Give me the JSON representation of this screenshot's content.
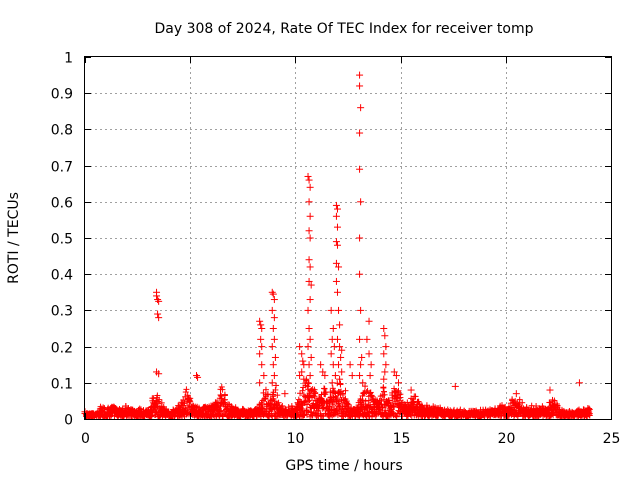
{
  "chart_data": {
    "type": "scatter",
    "title": "Day 308 of 2024, Rate Of TEC Index for receiver tomp",
    "xlabel": "GPS time / hours",
    "ylabel": "ROTI / TECUs",
    "xlim": [
      0,
      25
    ],
    "ylim": [
      0,
      1
    ],
    "x_ticks": [
      "0",
      "5",
      "10",
      "15",
      "20",
      "25"
    ],
    "y_ticks": [
      "0",
      "0.1",
      "0.2",
      "0.3",
      "0.4",
      "0.5",
      "0.6",
      "0.7",
      "0.8",
      "0.9",
      "1"
    ],
    "grid": true,
    "marker": "plus",
    "color": "#ff0000",
    "series": [
      {
        "points": [
          [
            0.0,
            0.02
          ],
          [
            0.0,
            0.015
          ],
          [
            3.4,
            0.35
          ],
          [
            3.4,
            0.34
          ],
          [
            3.45,
            0.33
          ],
          [
            3.5,
            0.325
          ],
          [
            3.45,
            0.29
          ],
          [
            3.5,
            0.28
          ],
          [
            3.4,
            0.13
          ],
          [
            3.5,
            0.125
          ],
          [
            5.3,
            0.12
          ],
          [
            5.35,
            0.115
          ],
          [
            8.3,
            0.27
          ],
          [
            8.35,
            0.26
          ],
          [
            8.4,
            0.25
          ],
          [
            8.35,
            0.22
          ],
          [
            8.4,
            0.2
          ],
          [
            8.3,
            0.18
          ],
          [
            8.4,
            0.15
          ],
          [
            8.5,
            0.12
          ],
          [
            8.3,
            0.1
          ],
          [
            8.9,
            0.35
          ],
          [
            8.95,
            0.345
          ],
          [
            9.0,
            0.33
          ],
          [
            8.9,
            0.3
          ],
          [
            9.0,
            0.28
          ],
          [
            8.95,
            0.25
          ],
          [
            9.0,
            0.22
          ],
          [
            8.9,
            0.2
          ],
          [
            9.05,
            0.17
          ],
          [
            8.95,
            0.15
          ],
          [
            9.0,
            0.12
          ],
          [
            8.9,
            0.1
          ],
          [
            9.5,
            0.07
          ],
          [
            10.2,
            0.2
          ],
          [
            10.3,
            0.18
          ],
          [
            10.35,
            0.16
          ],
          [
            10.4,
            0.15
          ],
          [
            10.3,
            0.13
          ],
          [
            10.2,
            0.12
          ],
          [
            10.4,
            0.11
          ],
          [
            10.6,
            0.67
          ],
          [
            10.65,
            0.66
          ],
          [
            10.7,
            0.64
          ],
          [
            10.65,
            0.6
          ],
          [
            10.7,
            0.56
          ],
          [
            10.65,
            0.52
          ],
          [
            10.7,
            0.5
          ],
          [
            10.65,
            0.44
          ],
          [
            10.7,
            0.42
          ],
          [
            10.65,
            0.38
          ],
          [
            10.75,
            0.37
          ],
          [
            10.7,
            0.33
          ],
          [
            10.6,
            0.3
          ],
          [
            10.65,
            0.25
          ],
          [
            10.7,
            0.22
          ],
          [
            10.6,
            0.2
          ],
          [
            10.75,
            0.17
          ],
          [
            10.65,
            0.15
          ],
          [
            10.7,
            0.12
          ],
          [
            10.6,
            0.1
          ],
          [
            11.2,
            0.15
          ],
          [
            11.3,
            0.13
          ],
          [
            11.4,
            0.12
          ],
          [
            11.7,
            0.3
          ],
          [
            11.8,
            0.25
          ],
          [
            11.75,
            0.22
          ],
          [
            11.85,
            0.2
          ],
          [
            11.7,
            0.18
          ],
          [
            11.8,
            0.15
          ],
          [
            11.9,
            0.12
          ],
          [
            11.75,
            0.1
          ],
          [
            11.95,
            0.59
          ],
          [
            12.0,
            0.58
          ],
          [
            11.95,
            0.56
          ],
          [
            12.0,
            0.53
          ],
          [
            11.95,
            0.49
          ],
          [
            12.0,
            0.48
          ],
          [
            11.95,
            0.43
          ],
          [
            12.05,
            0.42
          ],
          [
            11.95,
            0.38
          ],
          [
            12.0,
            0.35
          ],
          [
            12.05,
            0.3
          ],
          [
            12.1,
            0.26
          ],
          [
            12.0,
            0.22
          ],
          [
            12.1,
            0.2
          ],
          [
            12.2,
            0.19
          ],
          [
            12.15,
            0.17
          ],
          [
            12.05,
            0.15
          ],
          [
            12.2,
            0.13
          ],
          [
            12.1,
            0.11
          ],
          [
            12.6,
            0.15
          ],
          [
            12.7,
            0.12
          ],
          [
            13.05,
            0.95
          ],
          [
            13.05,
            0.92
          ],
          [
            13.1,
            0.86
          ],
          [
            13.05,
            0.79
          ],
          [
            13.05,
            0.69
          ],
          [
            13.1,
            0.6
          ],
          [
            13.05,
            0.5
          ],
          [
            13.05,
            0.4
          ],
          [
            13.1,
            0.3
          ],
          [
            13.05,
            0.22
          ],
          [
            13.15,
            0.17
          ],
          [
            13.1,
            0.15
          ],
          [
            13.05,
            0.12
          ],
          [
            13.2,
            0.1
          ],
          [
            13.5,
            0.27
          ],
          [
            13.4,
            0.22
          ],
          [
            13.5,
            0.18
          ],
          [
            13.6,
            0.15
          ],
          [
            13.55,
            0.12
          ],
          [
            14.2,
            0.25
          ],
          [
            14.25,
            0.23
          ],
          [
            14.3,
            0.2
          ],
          [
            14.2,
            0.18
          ],
          [
            14.3,
            0.15
          ],
          [
            14.25,
            0.13
          ],
          [
            14.2,
            0.11
          ],
          [
            14.7,
            0.13
          ],
          [
            14.8,
            0.12
          ],
          [
            14.9,
            0.1
          ],
          [
            15.5,
            0.08
          ],
          [
            17.6,
            0.09
          ],
          [
            20.5,
            0.07
          ],
          [
            22.1,
            0.08
          ],
          [
            23.5,
            0.1
          ]
        ]
      }
    ]
  }
}
